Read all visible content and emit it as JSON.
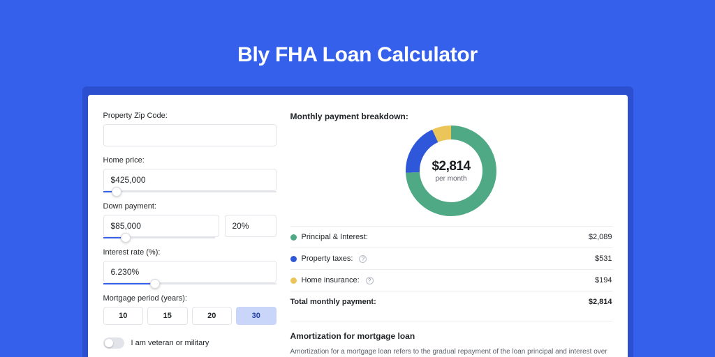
{
  "page": {
    "title": "Bly FHA Loan Calculator",
    "background_color": "#3460ec",
    "shadow_color": "#2b4fcf"
  },
  "form": {
    "zip": {
      "label": "Property Zip Code:",
      "value": ""
    },
    "home_price": {
      "label": "Home price:",
      "value": "$425,000",
      "slider_pct": 8
    },
    "down_payment": {
      "label": "Down payment:",
      "value": "$85,000",
      "pct_value": "20%",
      "slider_pct": 20
    },
    "interest_rate": {
      "label": "Interest rate (%):",
      "value": "6.230%",
      "slider_pct": 30
    },
    "mortgage_period": {
      "label": "Mortgage period (years):",
      "options": [
        "10",
        "15",
        "20",
        "30"
      ],
      "selected": "30"
    },
    "veteran": {
      "label": "I am veteran or military",
      "on": false
    }
  },
  "breakdown": {
    "title": "Monthly payment breakdown:",
    "donut": {
      "amount": "$2,814",
      "sub": "per month",
      "slices": [
        {
          "key": "principal_interest",
          "value": 2089,
          "color": "#4fa985"
        },
        {
          "key": "property_taxes",
          "value": 531,
          "color": "#2f57d9"
        },
        {
          "key": "home_insurance",
          "value": 194,
          "color": "#ebc559"
        }
      ],
      "stroke_width": 20,
      "bg": "#ffffff"
    },
    "lines": [
      {
        "label": "Principal & Interest:",
        "value": "$2,089",
        "swatch": "#4fa985",
        "info": false
      },
      {
        "label": "Property taxes:",
        "value": "$531",
        "swatch": "#2f57d9",
        "info": true
      },
      {
        "label": "Home insurance:",
        "value": "$194",
        "swatch": "#ebc559",
        "info": true
      }
    ],
    "total": {
      "label": "Total monthly payment:",
      "value": "$2,814"
    }
  },
  "amortization": {
    "title": "Amortization for mortgage loan",
    "text": "Amortization for a mortgage loan refers to the gradual repayment of the loan principal and interest over a specified"
  }
}
